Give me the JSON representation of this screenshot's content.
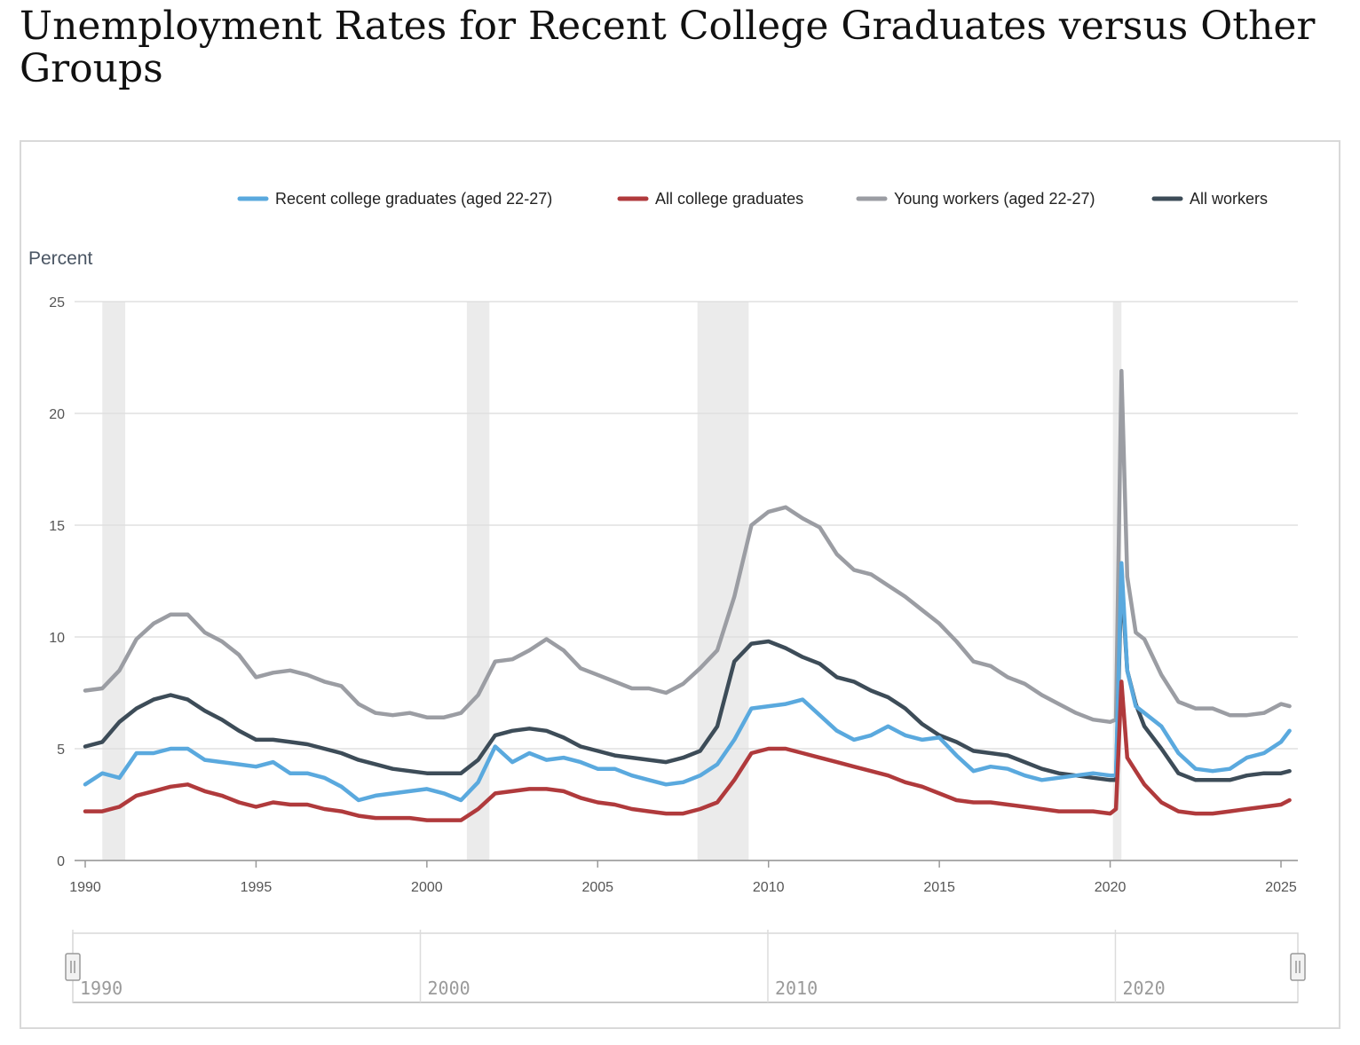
{
  "title": "Unemployment Rates for Recent College Graduates versus Other Groups",
  "chart_data": {
    "type": "line",
    "title": "Unemployment Rates for Recent College Graduates versus Other Groups",
    "ylabel": "Percent",
    "xlabel": "",
    "xlim": [
      1990,
      2025.5
    ],
    "ylim": [
      0,
      25
    ],
    "yticks": [
      0,
      5,
      10,
      15,
      20,
      25
    ],
    "xticks": [
      1990,
      1995,
      2000,
      2005,
      2010,
      2015,
      2020,
      2025
    ],
    "grid": "horizontal",
    "legend_position": "top",
    "recessions": [
      [
        1990.5,
        1991.17
      ],
      [
        2001.17,
        2001.83
      ],
      [
        2007.92,
        2009.42
      ],
      [
        2020.08,
        2020.33
      ]
    ],
    "navigator_labels": [
      "1990",
      "2000",
      "2010",
      "2020"
    ],
    "x": [
      1990.0,
      1990.5,
      1991.0,
      1991.5,
      1992.0,
      1992.5,
      1993.0,
      1993.5,
      1994.0,
      1994.5,
      1995.0,
      1995.5,
      1996.0,
      1996.5,
      1997.0,
      1997.5,
      1998.0,
      1998.5,
      1999.0,
      1999.5,
      2000.0,
      2000.5,
      2001.0,
      2001.5,
      2002.0,
      2002.5,
      2003.0,
      2003.5,
      2004.0,
      2004.5,
      2005.0,
      2005.5,
      2006.0,
      2006.5,
      2007.0,
      2007.5,
      2008.0,
      2008.5,
      2009.0,
      2009.5,
      2010.0,
      2010.5,
      2011.0,
      2011.5,
      2012.0,
      2012.5,
      2013.0,
      2013.5,
      2014.0,
      2014.5,
      2015.0,
      2015.5,
      2016.0,
      2016.5,
      2017.0,
      2017.5,
      2018.0,
      2018.5,
      2019.0,
      2019.5,
      2020.0,
      2020.17,
      2020.33,
      2020.5,
      2020.75,
      2021.0,
      2021.5,
      2022.0,
      2022.5,
      2023.0,
      2023.5,
      2024.0,
      2024.5,
      2025.0,
      2025.25
    ],
    "series": [
      {
        "name": "Recent college graduates (aged 22-27)",
        "color": "#5aa9de",
        "values": [
          3.4,
          3.9,
          3.7,
          4.8,
          4.8,
          5.0,
          5.0,
          4.5,
          4.4,
          4.3,
          4.2,
          4.4,
          3.9,
          3.9,
          3.7,
          3.3,
          2.7,
          2.9,
          3.0,
          3.1,
          3.2,
          3.0,
          2.7,
          3.5,
          5.1,
          4.4,
          4.8,
          4.5,
          4.6,
          4.4,
          4.1,
          4.1,
          3.8,
          3.6,
          3.4,
          3.5,
          3.8,
          4.3,
          5.4,
          6.8,
          6.9,
          7.0,
          7.2,
          6.5,
          5.8,
          5.4,
          5.6,
          6.0,
          5.6,
          5.4,
          5.5,
          4.7,
          4.0,
          4.2,
          4.1,
          3.8,
          3.6,
          3.7,
          3.8,
          3.9,
          3.8,
          3.8,
          13.3,
          8.5,
          6.9,
          6.6,
          6.0,
          4.8,
          4.1,
          4.0,
          4.1,
          4.6,
          4.8,
          5.3,
          5.8
        ]
      },
      {
        "name": "All college graduates",
        "color": "#b03a3c",
        "values": [
          2.2,
          2.2,
          2.4,
          2.9,
          3.1,
          3.3,
          3.4,
          3.1,
          2.9,
          2.6,
          2.4,
          2.6,
          2.5,
          2.5,
          2.3,
          2.2,
          2.0,
          1.9,
          1.9,
          1.9,
          1.8,
          1.8,
          1.8,
          2.3,
          3.0,
          3.1,
          3.2,
          3.2,
          3.1,
          2.8,
          2.6,
          2.5,
          2.3,
          2.2,
          2.1,
          2.1,
          2.3,
          2.6,
          3.6,
          4.8,
          5.0,
          5.0,
          4.8,
          4.6,
          4.4,
          4.2,
          4.0,
          3.8,
          3.5,
          3.3,
          3.0,
          2.7,
          2.6,
          2.6,
          2.5,
          2.4,
          2.3,
          2.2,
          2.2,
          2.2,
          2.1,
          2.3,
          8.0,
          4.6,
          4.0,
          3.4,
          2.6,
          2.2,
          2.1,
          2.1,
          2.2,
          2.3,
          2.4,
          2.5,
          2.7
        ]
      },
      {
        "name": "Young workers (aged 22-27)",
        "color": "#9b9da3",
        "values": [
          7.6,
          7.7,
          8.5,
          9.9,
          10.6,
          11.0,
          11.0,
          10.2,
          9.8,
          9.2,
          8.2,
          8.4,
          8.5,
          8.3,
          8.0,
          7.8,
          7.0,
          6.6,
          6.5,
          6.6,
          6.4,
          6.4,
          6.6,
          7.4,
          8.9,
          9.0,
          9.4,
          9.9,
          9.4,
          8.6,
          8.3,
          8.0,
          7.7,
          7.7,
          7.5,
          7.9,
          8.6,
          9.4,
          11.8,
          15.0,
          15.6,
          15.8,
          15.3,
          14.9,
          13.7,
          13.0,
          12.8,
          12.3,
          11.8,
          11.2,
          10.6,
          9.8,
          8.9,
          8.7,
          8.2,
          7.9,
          7.4,
          7.0,
          6.6,
          6.3,
          6.2,
          6.3,
          21.9,
          12.7,
          10.2,
          9.9,
          8.3,
          7.1,
          6.8,
          6.8,
          6.5,
          6.5,
          6.6,
          7.0,
          6.9
        ]
      },
      {
        "name": "All workers",
        "color": "#3d4c58",
        "values": [
          5.1,
          5.3,
          6.2,
          6.8,
          7.2,
          7.4,
          7.2,
          6.7,
          6.3,
          5.8,
          5.4,
          5.4,
          5.3,
          5.2,
          5.0,
          4.8,
          4.5,
          4.3,
          4.1,
          4.0,
          3.9,
          3.9,
          3.9,
          4.5,
          5.6,
          5.8,
          5.9,
          5.8,
          5.5,
          5.1,
          4.9,
          4.7,
          4.6,
          4.5,
          4.4,
          4.6,
          4.9,
          6.0,
          8.9,
          9.7,
          9.8,
          9.5,
          9.1,
          8.8,
          8.2,
          8.0,
          7.6,
          7.3,
          6.8,
          6.1,
          5.6,
          5.3,
          4.9,
          4.8,
          4.7,
          4.4,
          4.1,
          3.9,
          3.8,
          3.7,
          3.6,
          3.6,
          12.7,
          8.5,
          7.0,
          6.0,
          5.0,
          3.9,
          3.6,
          3.6,
          3.6,
          3.8,
          3.9,
          3.9,
          4.0
        ]
      }
    ]
  }
}
